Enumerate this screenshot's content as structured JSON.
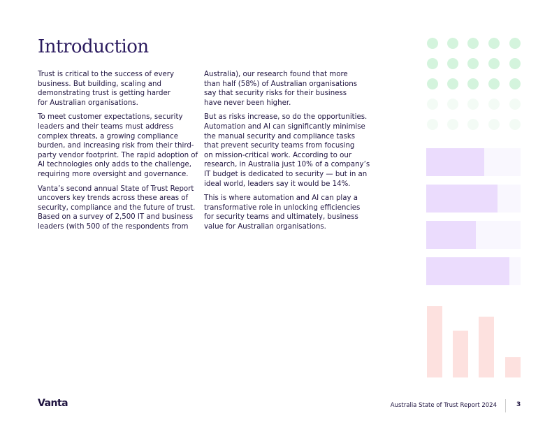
{
  "header": {
    "title": "Introduction"
  },
  "columns": [
    {
      "paragraphs": [
        [
          "Trust is critical to the success of every",
          "business. But building, scaling and",
          "demonstrating trust is getting harder",
          "for Australian organisations."
        ],
        [
          "To meet customer expectations, security",
          "leaders and their teams must address",
          "complex threats, a growing compliance",
          "burden, and increasing risk from their third-",
          "party vendor footprint. The rapid adoption of",
          "AI technologies only adds to the challenge,",
          "requiring more oversight and governance."
        ],
        [
          "Vanta’s second annual State of Trust Report",
          "uncovers key trends across these areas of",
          "security, compliance and the future of trust.",
          "Based on a survey of 2,500 IT and business",
          "leaders (with 500 of the respondents from"
        ]
      ]
    },
    {
      "paragraphs": [
        [
          "Australia), our research found that more",
          "than half (58%) of Australian organisations",
          "say that security risks for their business",
          "have never been higher."
        ],
        [
          "But as risks increase, so do the opportunities.",
          "Automation and AI can significantly minimise",
          "the manual security and compliance tasks",
          "that prevent security teams from focusing",
          "on mission-critical work. According to our",
          "research, in Australia just 10% of a company’s",
          "IT budget is dedicated to security — but in an",
          "ideal world, leaders say it would be 14%."
        ],
        [
          "This is where automation and AI can play a",
          "transformative role in unlocking efficiencies",
          "for security teams and ultimately, business",
          "value for Australian organisations."
        ]
      ]
    }
  ],
  "footer": {
    "brand": "Vanta",
    "report": "Australia State of Trust Report 2024",
    "page": "3"
  }
}
